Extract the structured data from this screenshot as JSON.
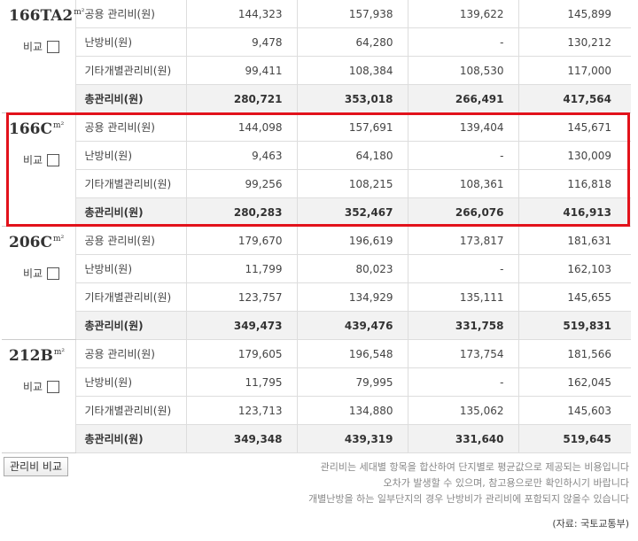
{
  "units": [
    {
      "name": "166TA2",
      "unit_sup": "m²",
      "compare_label": "비교",
      "rows": [
        {
          "label": "공용 관리비(원)",
          "values": [
            "144,323",
            "157,938",
            "139,622",
            "145,899"
          ]
        },
        {
          "label": "난방비(원)",
          "values": [
            "9,478",
            "64,280",
            "-",
            "130,212"
          ]
        },
        {
          "label": "기타개별관리비(원)",
          "values": [
            "99,411",
            "108,384",
            "108,530",
            "117,000"
          ]
        },
        {
          "label": "총관리비(원)",
          "values": [
            "280,721",
            "353,018",
            "266,491",
            "417,564"
          ],
          "total": true
        }
      ]
    },
    {
      "name": "166C",
      "unit_sup": "m²",
      "compare_label": "비교",
      "rows": [
        {
          "label": "공용 관리비(원)",
          "values": [
            "144,098",
            "157,691",
            "139,404",
            "145,671"
          ]
        },
        {
          "label": "난방비(원)",
          "values": [
            "9,463",
            "64,180",
            "-",
            "130,009"
          ]
        },
        {
          "label": "기타개별관리비(원)",
          "values": [
            "99,256",
            "108,215",
            "108,361",
            "116,818"
          ]
        },
        {
          "label": "총관리비(원)",
          "values": [
            "280,283",
            "352,467",
            "266,076",
            "416,913"
          ],
          "total": true
        }
      ]
    },
    {
      "name": "206C",
      "unit_sup": "m²",
      "compare_label": "비교",
      "rows": [
        {
          "label": "공용 관리비(원)",
          "values": [
            "179,670",
            "196,619",
            "173,817",
            "181,631"
          ]
        },
        {
          "label": "난방비(원)",
          "values": [
            "11,799",
            "80,023",
            "-",
            "162,103"
          ]
        },
        {
          "label": "기타개별관리비(원)",
          "values": [
            "123,757",
            "134,929",
            "135,111",
            "145,655"
          ]
        },
        {
          "label": "총관리비(원)",
          "values": [
            "349,473",
            "439,476",
            "331,758",
            "519,831"
          ],
          "total": true
        }
      ]
    },
    {
      "name": "212B",
      "unit_sup": "m²",
      "compare_label": "비교",
      "rows": [
        {
          "label": "공용 관리비(원)",
          "values": [
            "179,605",
            "196,548",
            "173,754",
            "181,566"
          ]
        },
        {
          "label": "난방비(원)",
          "values": [
            "11,795",
            "79,995",
            "-",
            "162,045"
          ]
        },
        {
          "label": "기타개별관리비(원)",
          "values": [
            "123,713",
            "134,880",
            "135,062",
            "145,603"
          ]
        },
        {
          "label": "총관리비(원)",
          "values": [
            "349,348",
            "439,319",
            "331,640",
            "519,645"
          ],
          "total": true
        }
      ]
    }
  ],
  "highlight_color": "#e2121b",
  "compare_button_label": "관리비 비교",
  "notes": [
    "관리비는 세대별 항목을 합산하여 단지별로 평균값으로 제공되는 비용입니다",
    "오차가 발생할 수 있으며, 참고용으로만 확인하시기 바랍니다",
    "개별난방을 하는 일부단지의 경우 난방비가 관리비에 포함되지 않을수 있습니다"
  ],
  "source": "(자료: 국토교통부)"
}
